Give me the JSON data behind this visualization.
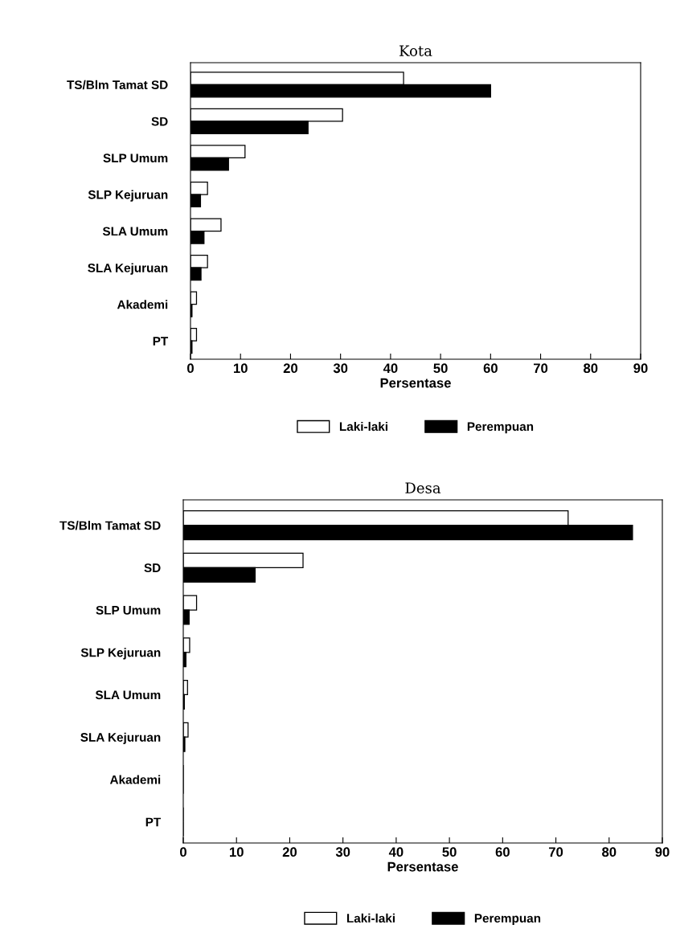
{
  "chart_data": [
    {
      "type": "bar",
      "orientation": "horizontal",
      "title": "Kota",
      "xlabel": "Persentase",
      "categories": [
        "TS/Blm Tamat SD",
        "SD",
        "SLP Umum",
        "SLP Kejuruan",
        "SLA Umum",
        "SLA Kejuruan",
        "Akademi",
        "PT"
      ],
      "series": [
        {
          "name": "Laki-laki",
          "color": "#ffffff",
          "values": [
            42.6,
            30.4,
            10.9,
            3.4,
            6.1,
            3.4,
            1.2,
            1.2
          ]
        },
        {
          "name": "Perempuan",
          "color": "#000000",
          "values": [
            60,
            23.5,
            7.6,
            2.0,
            2.7,
            2.1,
            0.3,
            0.3
          ]
        }
      ],
      "xlim": [
        0,
        90
      ],
      "xticks": [
        0,
        10,
        20,
        30,
        40,
        50,
        60,
        70,
        80,
        90
      ],
      "grid": false,
      "legend": "bottom"
    },
    {
      "type": "bar",
      "orientation": "horizontal",
      "title": "Desa",
      "xlabel": "Persentase",
      "categories": [
        "TS/Blm Tamat SD",
        "SD",
        "SLP Umum",
        "SLP Kejuruan",
        "SLA Umum",
        "SLA Kejuruan",
        "Akademi",
        "PT"
      ],
      "series": [
        {
          "name": "Laki-laki",
          "color": "#ffffff",
          "values": [
            72.3,
            22.5,
            2.5,
            1.2,
            0.8,
            0.9,
            null,
            null
          ]
        },
        {
          "name": "Perempuan",
          "color": "#000000",
          "values": [
            84.4,
            13.5,
            1.1,
            0.5,
            0.2,
            0.3,
            null,
            null
          ]
        }
      ],
      "xlim": [
        0,
        90
      ],
      "xticks": [
        0,
        10,
        20,
        30,
        40,
        50,
        60,
        70,
        80,
        90
      ],
      "grid": false,
      "legend": "bottom"
    }
  ]
}
